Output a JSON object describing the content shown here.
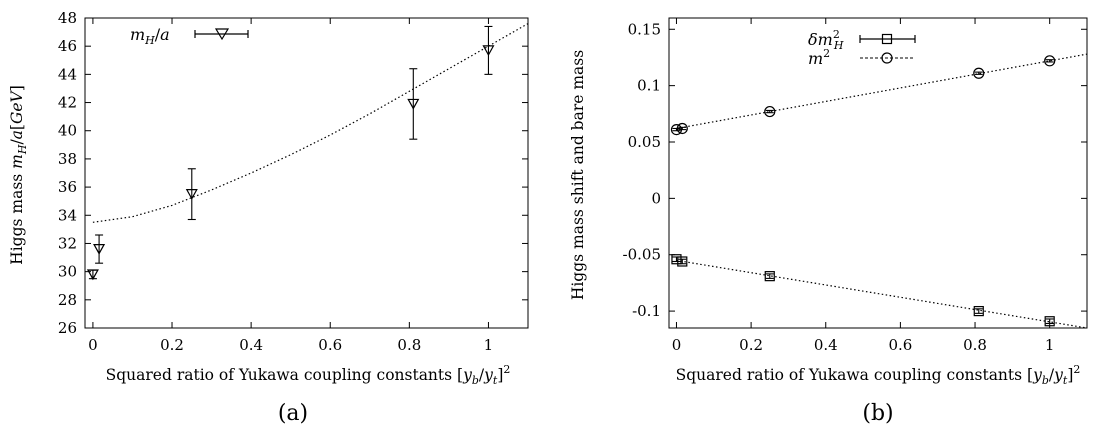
{
  "chart_data": [
    {
      "type": "scatter",
      "panel_label": "(a)",
      "xlabel": "Squared ratio of Yukawa coupling constants [y_b/y_t]^2",
      "ylabel": "Higgs mass m_H/a [GeV]",
      "xlim": [
        -0.02,
        1.1
      ],
      "ylim": [
        26,
        48
      ],
      "xticks": [
        0,
        0.2,
        0.4,
        0.6,
        0.8,
        1
      ],
      "xtick_labels": [
        "0",
        "0.2",
        "0.4",
        "0.6",
        "0.8",
        "1"
      ],
      "yticks": [
        26,
        28,
        30,
        32,
        34,
        36,
        38,
        40,
        42,
        44,
        46,
        48
      ],
      "ytick_labels": [
        "26",
        "28",
        "30",
        "32",
        "34",
        "36",
        "38",
        "40",
        "42",
        "44",
        "46",
        "48"
      ],
      "legend_position": "top-left",
      "series": [
        {
          "name": "m_H/a",
          "marker": "triangle-down",
          "x": [
            0,
            0.0156,
            0.25,
            0.81,
            1.0
          ],
          "y": [
            29.8,
            31.6,
            35.5,
            41.9,
            45.7
          ],
          "y_err": [
            0.3,
            1.0,
            1.8,
            2.5,
            1.7
          ]
        }
      ],
      "fit": {
        "style": "dotted",
        "x": [
          0,
          0.1,
          0.2,
          0.3,
          0.4,
          0.5,
          0.6,
          0.7,
          0.8,
          0.9,
          1.0,
          1.1
        ],
        "y": [
          33.5,
          33.9,
          34.7,
          35.8,
          37.0,
          38.3,
          39.7,
          41.2,
          42.8,
          44.4,
          46.0,
          47.6
        ]
      }
    },
    {
      "type": "scatter",
      "panel_label": "(b)",
      "xlabel": "Squared ratio of Yukawa coupling constants [y_b/y_t]^2",
      "ylabel": "Higgs mass shift and bare mass",
      "xlim": [
        -0.02,
        1.1
      ],
      "ylim": [
        -0.115,
        0.16
      ],
      "xticks": [
        0,
        0.2,
        0.4,
        0.6,
        0.8,
        1
      ],
      "xtick_labels": [
        "0",
        "0.2",
        "0.4",
        "0.6",
        "0.8",
        "1"
      ],
      "yticks": [
        -0.1,
        -0.05,
        0,
        0.05,
        0.1,
        0.15
      ],
      "ytick_labels": [
        "-0.1",
        "-0.05",
        "0",
        "0.05",
        "0.1",
        "0.15"
      ],
      "legend_position": "top-center",
      "series": [
        {
          "name": "δm_H^2",
          "marker": "square",
          "x": [
            0,
            0.0156,
            0.25,
            0.81,
            1.0
          ],
          "y": [
            -0.054,
            -0.056,
            -0.069,
            -0.1,
            -0.109
          ],
          "y_err": [
            0.002,
            0.002,
            0.002,
            0.002,
            0.002
          ]
        },
        {
          "name": "m^2",
          "marker": "circle",
          "x": [
            0,
            0.0156,
            0.25,
            0.81,
            1.0
          ],
          "y": [
            0.061,
            0.062,
            0.077,
            0.111,
            0.122
          ],
          "y_err": [
            0.001,
            0.001,
            0.001,
            0.001,
            0.001
          ]
        }
      ],
      "fits": [
        {
          "style": "dotted",
          "x": [
            0,
            1.1
          ],
          "y": [
            -0.055,
            -0.115
          ]
        },
        {
          "style": "dotted",
          "x": [
            0,
            1.1
          ],
          "y": [
            0.062,
            0.128
          ]
        }
      ]
    }
  ]
}
